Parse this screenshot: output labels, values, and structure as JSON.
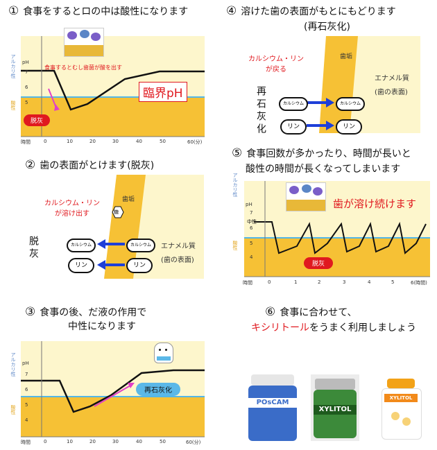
{
  "p1": {
    "num": "①",
    "title": "食事をするとロの中は酸性になります",
    "ylabel_alk": "アルカリ性",
    "ylabel_acid": "酸性",
    "ylabel_ph": "pH",
    "yticks": [
      "7",
      "6",
      "5",
      "4"
    ],
    "xticks": [
      "時間",
      "0",
      "10",
      "20",
      "30",
      "40",
      "50",
      "60(分)"
    ],
    "caption": "食事するとむし歯菌が酸を出す",
    "critical": "臨界pH",
    "badge": "脱灰"
  },
  "p2": {
    "num": "②",
    "title": "歯の表面がとけます(脱灰)",
    "red_text": [
      "カルシウム・リン",
      "が溶け出す"
    ],
    "plaque": "歯垢",
    "sugar": "糖",
    "side": "脱灰",
    "pill1": "カルシウム",
    "pill2": "カルシウム",
    "pill3": "リン",
    "pill4": "リン",
    "enamel": "エナメル質",
    "enamel_sub": "(歯の表面)"
  },
  "p3": {
    "num": "③",
    "title_1": "食事の後、だ液の作用で",
    "title_2": "中性になります",
    "ylabel_alk": "アルカリ性",
    "ylabel_acid": "酸性",
    "ylabel_ph": "pH",
    "yticks": [
      "7",
      "6",
      "5",
      "4"
    ],
    "xticks": [
      "時間",
      "0",
      "10",
      "20",
      "30",
      "40",
      "50",
      "60(分)"
    ],
    "badge": "再石灰化"
  },
  "p4": {
    "num": "④",
    "title_1": "溶けた歯の表面がもとにもどります",
    "title_2": "(再石灰化)",
    "red_text": [
      "カルシウム・リン",
      "が戻る"
    ],
    "plaque": "歯垢",
    "enamel": "エナメル質",
    "enamel_sub": "(歯の表面)",
    "side": "再石灰化",
    "pill1": "カルシウム",
    "pill2": "カルシウム",
    "pill3": "リン",
    "pill4": "リン"
  },
  "p5": {
    "num": "⑤",
    "title_1": "食事回数が多かったり、時間が長いと",
    "title_2": "酸性の時間が長くなってしまいます",
    "ylabel_alk": "アルカリ性",
    "ylabel_acid": "酸性",
    "ylabel_ph": "pH",
    "neutral": "中性",
    "yticks": [
      "7",
      "6",
      "5",
      "4"
    ],
    "xticks": [
      "時間",
      "0",
      "1",
      "2",
      "3",
      "4",
      "5",
      "6(時間)"
    ],
    "caption": "歯が溶け続けます",
    "badge": "脱灰"
  },
  "p6": {
    "num": "⑥",
    "title_1": "食事に合わせて、",
    "title_2a": "キシリトール",
    "title_2b": "をうまく利用しましょう",
    "product1": "POsCAM",
    "product2": "XYLITOL",
    "product3": "XYLITOL"
  },
  "colors": {
    "orange": "#f6c135",
    "cream": "#fdf6cc",
    "blue_line": "#54b6e6",
    "red": "#e0191f",
    "pink": "#e040c8",
    "arrow_blue": "#1e3fd8"
  }
}
